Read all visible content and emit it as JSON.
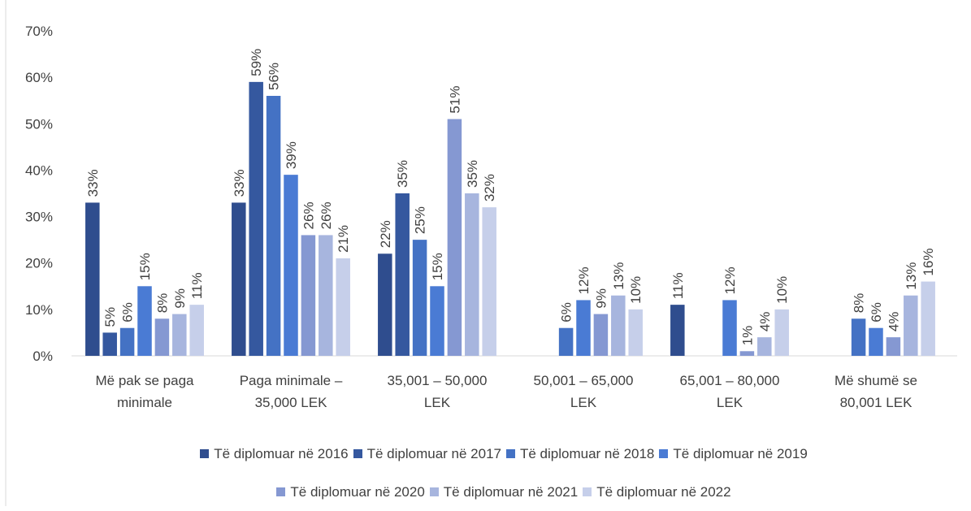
{
  "chart_data": {
    "type": "bar",
    "categories": [
      "Më pak se paga minimale",
      "Paga minimale – 35,000 LEK",
      "35,001 – 50,000 LEK",
      "50,001 – 65,000 LEK",
      "65,001 – 80,000 LEK",
      "Më shumë se 80,001 LEK"
    ],
    "series": [
      {
        "name": "Të diplomuar në 2016",
        "color": "#2f4d8e",
        "values": [
          33,
          33,
          22,
          null,
          11,
          null
        ],
        "value_labels": [
          "33%",
          "33%",
          "22%",
          null,
          "11%",
          null
        ]
      },
      {
        "name": "Të diplomuar në 2017",
        "color": "#35589f",
        "values": [
          5,
          59,
          35,
          null,
          null,
          null
        ],
        "value_labels": [
          "5%",
          "59%",
          "35%",
          null,
          null,
          null
        ]
      },
      {
        "name": "Të diplomuar në 2018",
        "color": "#4472c4",
        "values": [
          6,
          56,
          25,
          6,
          null,
          8
        ],
        "value_labels": [
          "6%",
          "56%",
          "25%",
          "6%",
          null,
          "8%"
        ]
      },
      {
        "name": "Të diplomuar në 2019",
        "color": "#4a7bd4",
        "values": [
          15,
          39,
          15,
          12,
          12,
          6
        ],
        "value_labels": [
          "15%",
          "39%",
          "15%",
          "12%",
          "12%",
          "6%"
        ]
      },
      {
        "name": "Të diplomuar në 2020",
        "color": "#8598d2",
        "values": [
          8,
          26,
          51,
          9,
          1,
          4
        ],
        "value_labels": [
          "8%",
          "26%",
          "51%",
          "9%",
          "1%",
          "4%"
        ]
      },
      {
        "name": "Të diplomuar në 2021",
        "color": "#a7b5de",
        "values": [
          9,
          26,
          35,
          13,
          4,
          13
        ],
        "value_labels": [
          "9%",
          "26%",
          "35%",
          "13%",
          "4%",
          "13%"
        ]
      },
      {
        "name": "Të diplomuar në 2022",
        "color": "#c6cfea",
        "values": [
          11,
          21,
          32,
          10,
          10,
          16
        ],
        "value_labels": [
          "11%",
          "21%",
          "32%",
          "10%",
          "10%",
          "16%"
        ]
      }
    ],
    "ylim": [
      0,
      70
    ],
    "yticks": [
      {
        "value": 0,
        "label": "0%"
      },
      {
        "value": 10,
        "label": "10%"
      },
      {
        "value": 20,
        "label": "20%"
      },
      {
        "value": 30,
        "label": "30%"
      },
      {
        "value": 40,
        "label": "40%"
      },
      {
        "value": 50,
        "label": "50%"
      },
      {
        "value": 60,
        "label": "60%"
      },
      {
        "value": 70,
        "label": "70%"
      }
    ],
    "legend": "bottom"
  }
}
